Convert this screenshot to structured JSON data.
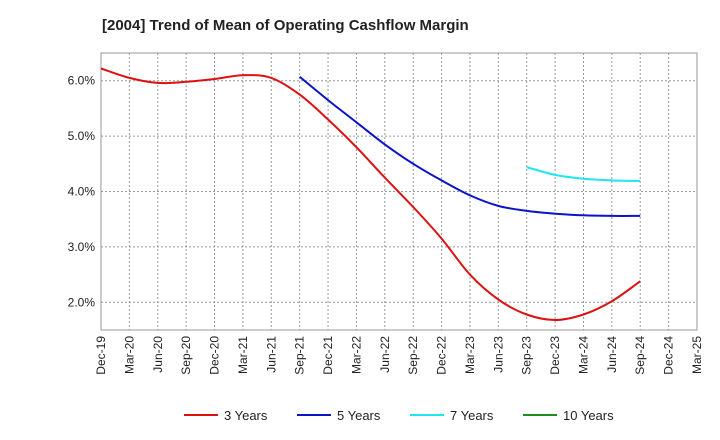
{
  "chart_data": {
    "type": "line",
    "title": "[2004]  Trend of Mean of Operating Cashflow Margin",
    "xlabel": "",
    "ylabel": "",
    "x": [
      "Dec-19",
      "Mar-20",
      "Jun-20",
      "Sep-20",
      "Dec-20",
      "Mar-21",
      "Jun-21",
      "Sep-21",
      "Dec-21",
      "Mar-22",
      "Jun-22",
      "Sep-22",
      "Dec-22",
      "Mar-23",
      "Jun-23",
      "Sep-23",
      "Dec-23",
      "Mar-24",
      "Jun-24",
      "Sep-24",
      "Dec-24",
      "Mar-25"
    ],
    "ylim": [
      1.5,
      6.5
    ],
    "yticks": [
      2.0,
      3.0,
      4.0,
      5.0,
      6.0
    ],
    "ytick_labels": [
      "2.0%",
      "3.0%",
      "4.0%",
      "5.0%",
      "6.0%"
    ],
    "grid": true,
    "legend_position": "bottom",
    "series": [
      {
        "name": "3 Years",
        "color": "#dd1111",
        "values": [
          6.22,
          6.05,
          5.96,
          5.98,
          6.03,
          6.1,
          6.05,
          5.75,
          5.3,
          4.8,
          4.25,
          3.72,
          3.15,
          2.5,
          2.05,
          1.78,
          1.68,
          1.78,
          2.02,
          2.38,
          null,
          null
        ]
      },
      {
        "name": "5 Years",
        "color": "#0a14c8",
        "values": [
          null,
          null,
          null,
          null,
          null,
          null,
          null,
          6.07,
          5.65,
          5.25,
          4.85,
          4.5,
          4.2,
          3.93,
          3.74,
          3.65,
          3.6,
          3.57,
          3.56,
          3.56,
          null,
          null
        ]
      },
      {
        "name": "7 Years",
        "color": "#22e5ee",
        "values": [
          null,
          null,
          null,
          null,
          null,
          null,
          null,
          null,
          null,
          null,
          null,
          null,
          null,
          null,
          null,
          4.44,
          4.3,
          4.23,
          4.2,
          4.19,
          null,
          null
        ]
      },
      {
        "name": "10 Years",
        "color": "#1e8c1e",
        "values": [
          null,
          null,
          null,
          null,
          null,
          null,
          null,
          null,
          null,
          null,
          null,
          null,
          null,
          null,
          null,
          null,
          null,
          null,
          null,
          null,
          null,
          null
        ]
      }
    ]
  }
}
